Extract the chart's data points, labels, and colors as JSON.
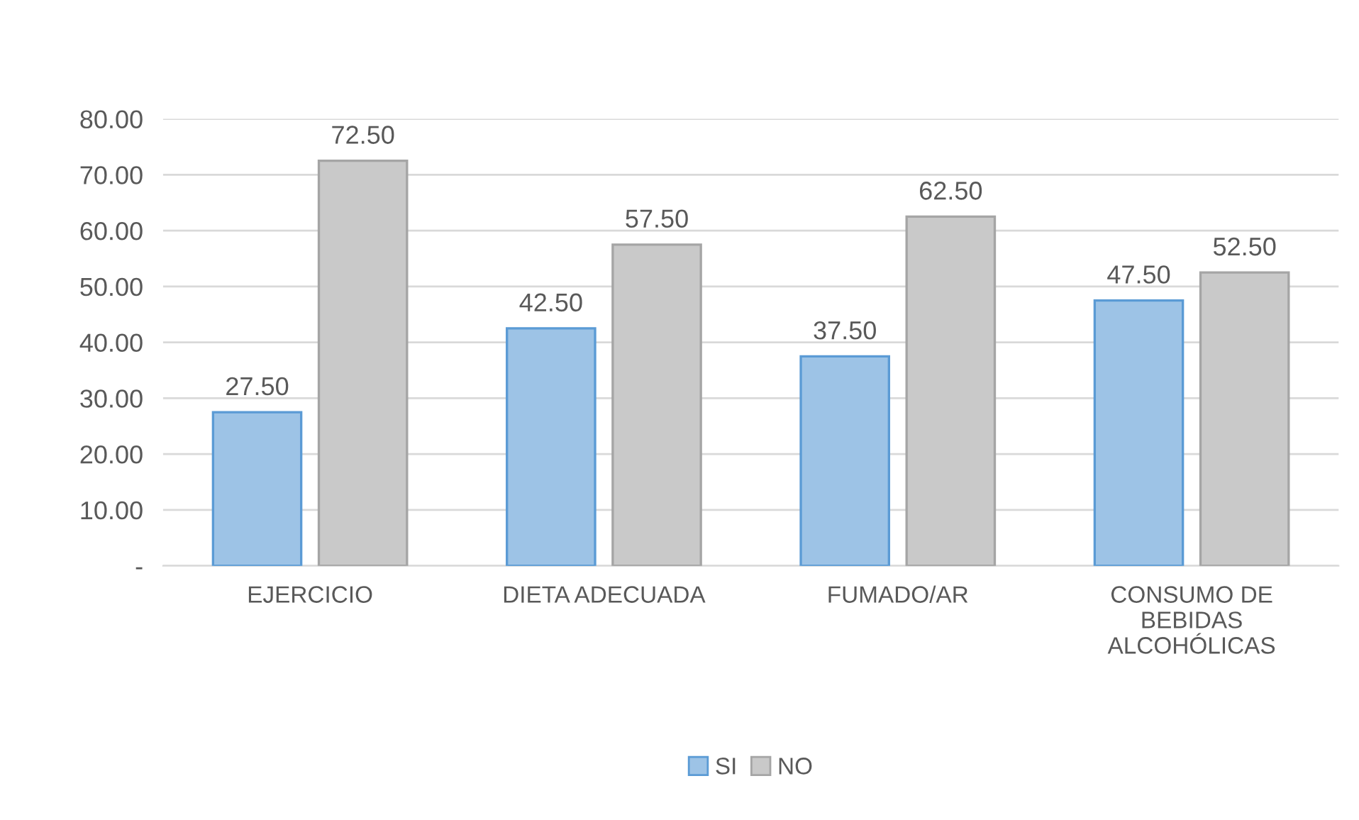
{
  "chart_data": {
    "type": "bar",
    "categories": [
      "EJERCICIO",
      "DIETA ADECUADA",
      "FUMADO/AR",
      "CONSUMO DE\nBEBIDAS\nALCOHÓLICAS"
    ],
    "series": [
      {
        "name": "SI",
        "color": "#9dc3e6",
        "values": [
          27.5,
          42.5,
          37.5,
          47.5
        ],
        "value_labels": [
          "27.50",
          "42.50",
          "37.50",
          "47.50"
        ]
      },
      {
        "name": "NO",
        "color": "#c9c9c9",
        "values": [
          72.5,
          57.5,
          62.5,
          52.5
        ],
        "value_labels": [
          "72.50",
          "57.50",
          "62.50",
          "52.50"
        ]
      }
    ],
    "ylim": [
      0,
      80
    ],
    "yticks": [
      {
        "value": 0,
        "label": "-"
      },
      {
        "value": 10,
        "label": "10.00"
      },
      {
        "value": 20,
        "label": "20.00"
      },
      {
        "value": 30,
        "label": "30.00"
      },
      {
        "value": 40,
        "label": "40.00"
      },
      {
        "value": 50,
        "label": "50.00"
      },
      {
        "value": 60,
        "label": "60.00"
      },
      {
        "value": 70,
        "label": "70.00"
      },
      {
        "value": 80,
        "label": "80.00"
      }
    ],
    "grid": "y",
    "legend": "bottom"
  }
}
